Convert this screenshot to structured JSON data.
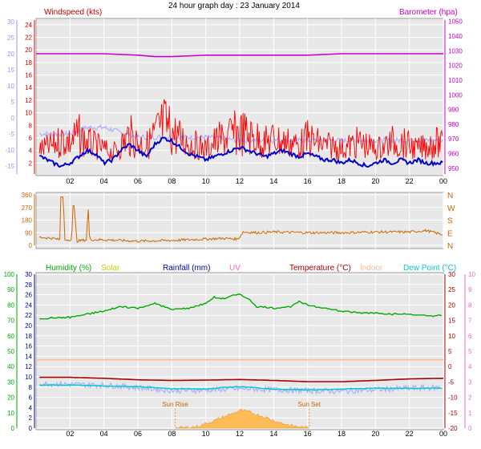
{
  "page": {
    "title": "24 hour graph day : 23 January 2014"
  },
  "colors": {
    "wind": "#dd0000",
    "gust": "#ff0000",
    "wind_avg": "#0000cc",
    "temp_axis_left": "#9999ee",
    "barometer": "#cc00cc",
    "direction": "#cc6600",
    "humidity": "#00aa00",
    "solar": "#cccc00",
    "rainfall": "#000099",
    "uv": "#ff66cc",
    "temperature": "#aa0000",
    "indoor": "#ffccaa",
    "dewpoint": "#00cccc",
    "plot_bg": "#e8e8e8",
    "grid": "#ffffff"
  },
  "chart_data": [
    {
      "type": "line",
      "panel": "wind_barometer",
      "labels": {
        "windspeed": "Windspeed (kts)",
        "barometer": "Barometer (hpa)"
      },
      "x_ticks": [
        "02",
        "04",
        "06",
        "08",
        "10",
        "12",
        "14",
        "16",
        "18",
        "20",
        "22",
        "00"
      ],
      "left_temp_ticks": [
        "30",
        "25",
        "20",
        "15",
        "10",
        "5",
        "0",
        "-5",
        "-10",
        "-15"
      ],
      "wind_ticks": [
        "24",
        "22",
        "20",
        "18",
        "16",
        "14",
        "12",
        "10",
        "8",
        "6",
        "4",
        "2"
      ],
      "baro_ticks": [
        "1050",
        "1040",
        "1030",
        "1020",
        "1010",
        "1000",
        "990",
        "980",
        "970",
        "960",
        "950"
      ],
      "ylim_wind": [
        0,
        25
      ],
      "ylim_baro": [
        945,
        1052
      ],
      "ylim_temp_left": [
        -18,
        31
      ],
      "series": {
        "wind_gust_x": [
          0.3,
          1,
          1.6,
          2,
          2.5,
          3,
          3.5,
          4,
          4.5,
          5,
          5.5,
          6,
          6.5,
          7,
          7.3,
          7.6,
          8,
          8.5,
          9,
          9.5,
          10,
          10.5,
          11,
          11.5,
          12,
          12.5,
          13,
          13.5,
          14,
          14.5,
          15,
          15.5,
          16,
          16.5,
          17,
          17.5,
          18,
          18.5,
          19,
          19.5,
          20,
          20.5,
          21,
          21.5,
          22,
          22.5,
          23,
          23.5,
          24
        ],
        "wind_gust_y": [
          6,
          7,
          9,
          8,
          10,
          8,
          7,
          6,
          5,
          7,
          10,
          8,
          7,
          10,
          12,
          13,
          11,
          9,
          8,
          7,
          6,
          8,
          9,
          10,
          11,
          10,
          9,
          8,
          9,
          8,
          8,
          7,
          9,
          8,
          7,
          7,
          6,
          7,
          8,
          7,
          6,
          7,
          8,
          8,
          7,
          6,
          7,
          8,
          7
        ],
        "wind_avg_x": [
          0.3,
          1,
          1.5,
          2,
          2.5,
          3,
          3.5,
          4,
          4.5,
          5,
          5.5,
          6,
          6.5,
          7,
          7.5,
          8,
          8.5,
          9,
          9.5,
          10,
          10.5,
          11,
          11.5,
          12,
          12.5,
          13,
          13.5,
          14,
          14.5,
          15,
          15.5,
          16,
          16.5,
          17,
          17.5,
          18,
          18.5,
          19,
          19.5,
          20,
          20.5,
          21,
          21.5,
          22,
          22.5,
          23,
          23.5,
          24
        ],
        "wind_avg_y": [
          3,
          2,
          1.5,
          2,
          3,
          4,
          3.5,
          2,
          2.5,
          4,
          5,
          4,
          3,
          5,
          6,
          5.5,
          4.5,
          3.5,
          3,
          2.5,
          3,
          3.5,
          4,
          4.5,
          4,
          3.5,
          3,
          3.5,
          4,
          3.5,
          3,
          3.5,
          3,
          2.5,
          2.5,
          2,
          2.5,
          2,
          1.5,
          2,
          2.5,
          2,
          2.5,
          2,
          2.5,
          2,
          2,
          2
        ],
        "temp_left_x": [
          0,
          2,
          3,
          4,
          6,
          8,
          10,
          12,
          14,
          16,
          18,
          20,
          22,
          24
        ],
        "temp_left_y": [
          -5,
          -5,
          -3,
          -3,
          -6,
          -6,
          -6,
          -7,
          -7,
          -7,
          -7,
          -7,
          -7,
          -7
        ],
        "baro_x": [
          0,
          4,
          6,
          7,
          8,
          10,
          12,
          14,
          16,
          18,
          20,
          22,
          24
        ],
        "baro_y": [
          1028,
          1028,
          1027,
          1026,
          1026,
          1027,
          1027,
          1027,
          1027,
          1028,
          1028,
          1028,
          1028
        ]
      }
    },
    {
      "type": "line",
      "panel": "wind_direction",
      "y_ticks": [
        "360",
        "270",
        "180",
        "90",
        "0"
      ],
      "right_labels": [
        "N",
        "W",
        "S",
        "E",
        "N"
      ],
      "ylim": [
        0,
        360
      ],
      "series": {
        "dir_x": [
          0,
          0.5,
          1,
          1.4,
          1.45,
          1.6,
          1.7,
          2.1,
          2.2,
          2.4,
          3,
          3.05,
          3.15,
          3.2,
          4,
          6,
          8,
          9,
          10,
          11,
          11.9,
          12.2,
          13,
          14,
          16,
          18,
          20,
          22,
          23,
          24
        ],
        "dir_y": [
          60,
          55,
          50,
          40,
          345,
          345,
          40,
          40,
          345,
          30,
          40,
          345,
          40,
          40,
          40,
          30,
          35,
          40,
          45,
          50,
          45,
          95,
          90,
          95,
          90,
          90,
          95,
          95,
          105,
          75
        ]
      }
    },
    {
      "type": "line",
      "panel": "humidity_temp",
      "labels": {
        "humidity": "Humidity (%)",
        "solar": "Solar",
        "rainfall": "Rainfall (mm)",
        "uv": "UV",
        "temperature": "Temperature (°C)",
        "indoor": "Indoor",
        "dewpoint": "Dew Point (°C)"
      },
      "annotations": {
        "sunrise": "Sun Rise",
        "sunset": "Sun Set"
      },
      "humidity_ticks": [
        "100",
        "90",
        "80",
        "70",
        "60",
        "50",
        "40",
        "30",
        "20",
        "10",
        "0"
      ],
      "rain_ticks": [
        "30",
        "28",
        "26",
        "24",
        "22",
        "20",
        "18",
        "16",
        "14",
        "12",
        "10",
        "8",
        "6",
        "4",
        "2",
        "0"
      ],
      "temp_ticks": [
        "30",
        "25",
        "20",
        "15",
        "10",
        "5",
        "0",
        "-5",
        "-10",
        "-15",
        "-20"
      ],
      "uv_ticks": [
        "10",
        "9",
        "8",
        "7",
        "6",
        "5",
        "4",
        "3",
        "2",
        "1",
        "0"
      ],
      "x_ticks": [
        "02",
        "04",
        "06",
        "08",
        "10",
        "12",
        "14",
        "16",
        "18",
        "20",
        "22",
        "00"
      ],
      "ylim_humidity": [
        0,
        100
      ],
      "ylim_temp": [
        -20,
        30
      ],
      "series": {
        "humidity_x": [
          0,
          2,
          3,
          4,
          5,
          6,
          7,
          8,
          9,
          10,
          10.5,
          11,
          11.5,
          12,
          12.5,
          13,
          14,
          15,
          15.5,
          16,
          17,
          18,
          19,
          20,
          21,
          22,
          23,
          24
        ],
        "humidity_y": [
          71,
          72,
          74,
          76,
          79,
          78,
          81,
          77,
          78,
          81,
          85,
          84,
          86,
          87,
          84,
          79,
          78,
          79,
          82,
          80,
          78,
          76,
          75,
          75,
          74,
          74,
          73,
          73
        ],
        "temp_x": [
          0,
          2,
          4,
          6,
          8,
          10,
          12,
          14,
          16,
          18,
          20,
          22,
          24
        ],
        "temp_y": [
          -3.5,
          -3.5,
          -3.8,
          -4.3,
          -4.5,
          -4.4,
          -4.2,
          -4.5,
          -4.9,
          -4.9,
          -4.5,
          -4.0,
          -3.8
        ],
        "indoor_x": [
          0,
          24
        ],
        "indoor_y": [
          2.2,
          2.2
        ],
        "dew_x": [
          0,
          2,
          4,
          6,
          8,
          10,
          11,
          12,
          13,
          14,
          16,
          18,
          20,
          22,
          24
        ],
        "dew_y": [
          -6,
          -6,
          -6.3,
          -6.5,
          -7.2,
          -7.3,
          -6.8,
          -6.5,
          -6.9,
          -7.3,
          -7.6,
          -7.3,
          -7.0,
          -7.1,
          -7.0
        ],
        "feels_x": [
          0,
          2,
          4,
          6,
          8,
          10,
          12,
          14,
          16,
          18,
          20,
          22,
          24
        ],
        "feels_y": [
          -5.5,
          -5.8,
          -6,
          -6.8,
          -7.8,
          -7.6,
          -7.2,
          -7.5,
          -7.8,
          -8.0,
          -7.5,
          -7.0,
          -6.8
        ],
        "solar_x": [
          8.2,
          9.5,
          10.5,
          11.3,
          11.7,
          12,
          12.5,
          13.2,
          14,
          15,
          16.1
        ],
        "solar_y": [
          0,
          0.3,
          1.5,
          2.5,
          3,
          3.5,
          3.2,
          2.5,
          1.5,
          0.5,
          0
        ],
        "sunrise_x": 8.2,
        "sunset_x": 16.1
      }
    }
  ]
}
